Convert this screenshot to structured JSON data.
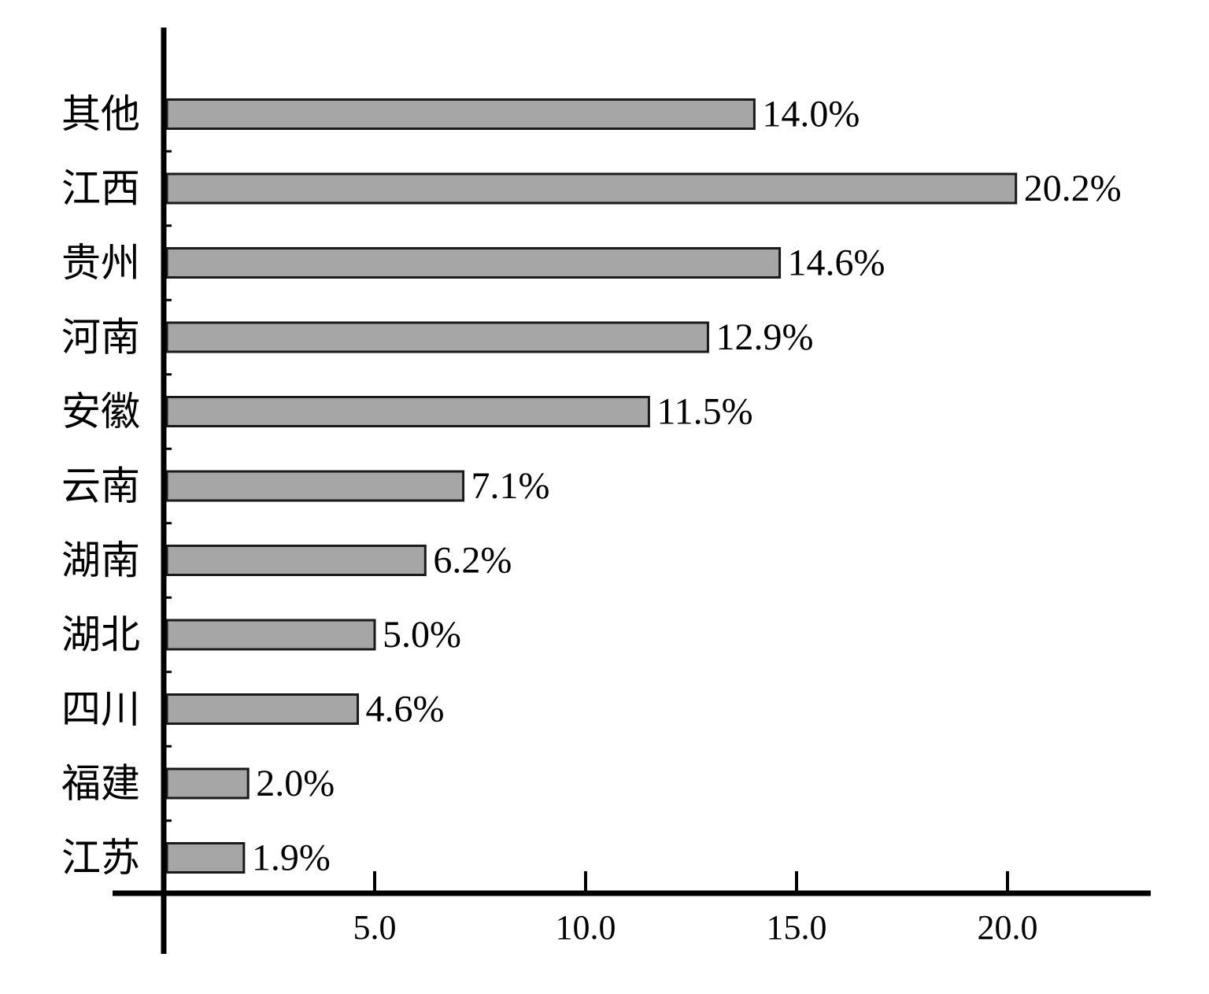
{
  "chart_data": {
    "type": "bar",
    "orientation": "horizontal",
    "categories": [
      "其他",
      "江西",
      "贵州",
      "河南",
      "安徽",
      "云南",
      "湖南",
      "湖北",
      "四川",
      "福建",
      "江苏"
    ],
    "values": [
      14.0,
      20.2,
      14.6,
      12.9,
      11.5,
      7.1,
      6.2,
      5.0,
      4.6,
      2.0,
      1.9
    ],
    "data_labels": [
      "14.0%",
      "20.2%",
      "14.6%",
      "12.9%",
      "11.5%",
      "7.1%",
      "6.2%",
      "5.0%",
      "4.6%",
      "2.0%",
      "1.9%"
    ],
    "x_ticks": [
      5.0,
      10.0,
      15.0,
      20.0
    ],
    "x_tick_labels": [
      "5.0",
      "10.0",
      "15.0",
      "20.0"
    ],
    "xlim": [
      0,
      23.5
    ],
    "title": "",
    "xlabel": "",
    "ylabel": "",
    "grid": false,
    "legend": "none",
    "colors": {
      "bar_fill": "#a6a6a6",
      "bar_stroke": "#1a1a1a",
      "axis": "#000000",
      "text": "#000000"
    }
  }
}
